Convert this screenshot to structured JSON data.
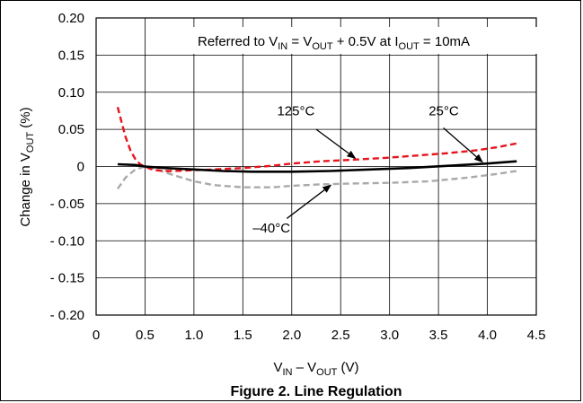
{
  "chart_data": {
    "type": "line",
    "title": "",
    "caption": "Figure 2. Line Regulation",
    "condition": {
      "t1": "Referred to V",
      "s1": "IN",
      "t2": " = V",
      "s2": "OUT",
      "t3": " + 0.5V at I",
      "s3": "OUT",
      "t4": " = 10mA"
    },
    "xlabel": {
      "t1": "V",
      "s1": "IN",
      "t2": " – V",
      "s2": "OUT",
      "t3": " (V)"
    },
    "ylabel": {
      "t1": "Change in V",
      "s1": "OUT",
      "t2": " (%)"
    },
    "xlim": [
      0,
      4.5
    ],
    "ylim": [
      -0.2,
      0.2
    ],
    "x_ticks": [
      0,
      0.5,
      1.0,
      1.5,
      2.0,
      2.5,
      3.0,
      3.5,
      4.0,
      4.5
    ],
    "x_tick_labels": [
      "0",
      "0.5",
      "1.0",
      "1.5",
      "2.0",
      "2.5",
      "3.0",
      "3.5",
      "4.0",
      "4.5"
    ],
    "y_ticks": [
      0.2,
      0.15,
      0.1,
      0.05,
      0,
      -0.05,
      -0.1,
      -0.15,
      -0.2
    ],
    "y_tick_labels": [
      "0.20",
      "0.15",
      "0.10",
      "0.05",
      "0",
      "- 0.05",
      "- 0.10",
      "- 0.15",
      "- 0.20"
    ],
    "grid": true,
    "series": [
      {
        "name": "125°C",
        "color": "#e8141b",
        "dash": "dashed",
        "x": [
          0.22,
          0.26,
          0.3,
          0.35,
          0.4,
          0.45,
          0.5,
          0.55,
          0.6,
          0.7,
          0.8,
          1.0,
          1.2,
          1.5,
          1.8,
          2.0,
          2.3,
          2.6,
          3.0,
          3.3,
          3.6,
          3.9,
          4.1,
          4.3
        ],
        "y": [
          0.08,
          0.06,
          0.04,
          0.022,
          0.01,
          0.003,
          0.0,
          -0.003,
          -0.005,
          -0.006,
          -0.006,
          -0.005,
          -0.004,
          -0.002,
          0.001,
          0.004,
          0.007,
          0.009,
          0.012,
          0.015,
          0.018,
          0.022,
          0.026,
          0.031
        ]
      },
      {
        "name": "25°C",
        "color": "#000000",
        "dash": "solid",
        "x": [
          0.22,
          0.4,
          0.5,
          0.7,
          1.0,
          1.3,
          1.6,
          2.0,
          2.4,
          2.8,
          3.2,
          3.6,
          4.0,
          4.3
        ],
        "y": [
          0.003,
          0.002,
          0.0,
          -0.002,
          -0.004,
          -0.006,
          -0.007,
          -0.007,
          -0.006,
          -0.004,
          -0.002,
          0.001,
          0.004,
          0.007
        ]
      },
      {
        "name": "–40°C",
        "color": "#aaaaaa",
        "dash": "dashed",
        "x": [
          0.22,
          0.3,
          0.4,
          0.5,
          0.6,
          0.8,
          1.0,
          1.2,
          1.5,
          1.8,
          2.0,
          2.3,
          2.6,
          3.0,
          3.4,
          3.8,
          4.1,
          4.3
        ],
        "y": [
          -0.03,
          -0.015,
          -0.004,
          0.0,
          -0.003,
          -0.012,
          -0.02,
          -0.025,
          -0.028,
          -0.028,
          -0.026,
          -0.024,
          -0.023,
          -0.022,
          -0.02,
          -0.015,
          -0.01,
          -0.006
        ]
      }
    ],
    "annotations": [
      {
        "text": "125°C",
        "label_x": 1.85,
        "label_y": 0.069,
        "arrow_from": [
          2.25,
          0.05
        ],
        "arrow_to": [
          2.65,
          0.011
        ]
      },
      {
        "text": "25°C",
        "label_x": 3.4,
        "label_y": 0.069,
        "arrow_from": [
          3.55,
          0.052
        ],
        "arrow_to": [
          3.95,
          0.006
        ]
      },
      {
        "text": "–40°C",
        "label_x": 1.6,
        "label_y": -0.089,
        "arrow_from": [
          1.95,
          -0.07
        ],
        "arrow_to": [
          2.4,
          -0.025
        ]
      }
    ]
  }
}
